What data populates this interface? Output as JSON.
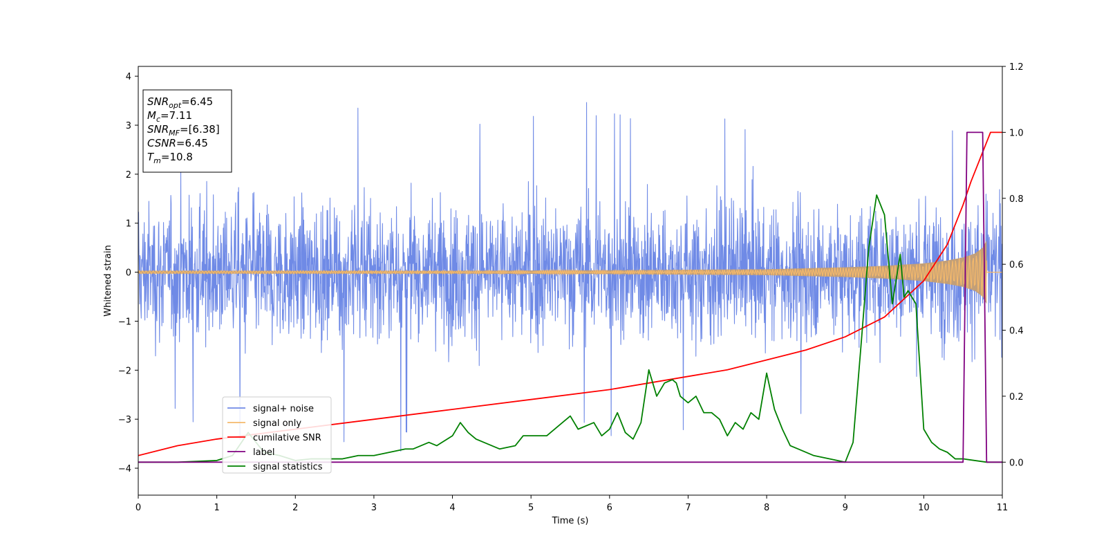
{
  "chart_data": {
    "type": "line",
    "title": "",
    "xlabel": "Time (s)",
    "ylabel": "Whitened strain",
    "xlim": [
      0,
      11
    ],
    "ylim": [
      -4.55,
      4.2
    ],
    "y2lim": [
      -0.1,
      1.2
    ],
    "xticks": [
      "0",
      "1",
      "2",
      "3",
      "4",
      "5",
      "6",
      "7",
      "8",
      "9",
      "10",
      "11"
    ],
    "yticks": [
      "4",
      "3",
      "2",
      "1",
      "0",
      "−1",
      "−2",
      "−3",
      "−4"
    ],
    "y2ticks": [
      "1.2",
      "1.0",
      "0.8",
      "0.6",
      "0.4",
      "0.2",
      "0.0"
    ],
    "annotation_lines": [
      {
        "name": "SNR",
        "sub": "opt",
        "value": "=6.45"
      },
      {
        "name": "M",
        "sub": "c",
        "value": "=7.11"
      },
      {
        "name": "SNR",
        "sub": "MF",
        "value": "=[6.38]"
      },
      {
        "name": "CSNR",
        "sub": "",
        "value": "=6.45"
      },
      {
        "name": "T",
        "sub": "m",
        "value": "=10.8"
      }
    ],
    "legend_position": "lower left",
    "series": [
      {
        "name": "signal+ noise",
        "axis": "left",
        "color": "#6f8ae6",
        "description_range": [
          -3.7,
          3.85
        ],
        "envelope": {
          "x": [
            0,
            1,
            2,
            3,
            4,
            5,
            6,
            7,
            8,
            9,
            10,
            11
          ],
          "typical_peak": [
            2.4,
            2.5,
            2.5,
            2.5,
            2.5,
            2.5,
            2.5,
            2.5,
            2.5,
            2.5,
            2.5,
            2.5
          ],
          "max_peak": [
            3.0,
            3.5,
            3.7,
            3.85,
            3.3,
            3.2,
            3.7,
            3.4,
            3.2,
            3.4,
            3.3,
            3.0
          ]
        }
      },
      {
        "name": "signal only",
        "axis": "left",
        "color": "#f5b96b",
        "fill_color": "#c29f78",
        "amplitude": {
          "x": [
            0,
            2,
            4,
            6,
            7,
            8,
            8.5,
            9,
            9.5,
            10,
            10.3,
            10.5,
            10.65,
            10.75,
            10.8
          ],
          "values": [
            0.03,
            0.03,
            0.03,
            0.04,
            0.05,
            0.06,
            0.08,
            0.1,
            0.13,
            0.18,
            0.24,
            0.3,
            0.38,
            0.5,
            0.65
          ]
        }
      },
      {
        "name": "cumilative SNR",
        "axis": "right",
        "color": "#ff0000",
        "x": [
          0,
          0.5,
          1,
          2,
          3,
          4,
          5,
          6,
          7,
          7.5,
          8,
          8.5,
          9,
          9.5,
          10,
          10.3,
          10.5,
          10.6,
          10.7,
          10.75,
          10.8,
          10.85,
          11
        ],
        "y": [
          0.02,
          0.05,
          0.07,
          0.1,
          0.13,
          0.16,
          0.19,
          0.22,
          0.26,
          0.28,
          0.31,
          0.34,
          0.38,
          0.44,
          0.55,
          0.66,
          0.78,
          0.85,
          0.91,
          0.94,
          0.97,
          1.0,
          1.0
        ]
      },
      {
        "name": "label",
        "axis": "right",
        "color": "#800080",
        "x": [
          0,
          10.5,
          10.55,
          10.75,
          10.8,
          11
        ],
        "y": [
          0,
          0,
          1,
          1,
          0,
          0
        ]
      },
      {
        "name": "signal statistics",
        "axis": "right",
        "color": "#008000",
        "x": [
          0,
          0.5,
          1,
          1.2,
          1.4,
          1.6,
          1.8,
          2,
          2.2,
          2.4,
          2.6,
          2.8,
          3,
          3.2,
          3.4,
          3.5,
          3.7,
          3.8,
          4,
          4.1,
          4.2,
          4.3,
          4.4,
          4.5,
          4.6,
          4.8,
          4.9,
          5,
          5.2,
          5.4,
          5.5,
          5.6,
          5.8,
          5.9,
          6,
          6.1,
          6.2,
          6.3,
          6.4,
          6.5,
          6.55,
          6.6,
          6.7,
          6.8,
          6.85,
          6.9,
          7,
          7.1,
          7.2,
          7.3,
          7.4,
          7.5,
          7.6,
          7.7,
          7.8,
          7.9,
          8,
          8.1,
          8.2,
          8.3,
          8.4,
          8.6,
          8.8,
          9,
          9.1,
          9.2,
          9.3,
          9.4,
          9.5,
          9.6,
          9.7,
          9.75,
          9.8,
          9.9,
          10,
          10.1,
          10.2,
          10.3,
          10.4,
          10.5,
          10.8,
          11
        ],
        "y": [
          0,
          0,
          0.005,
          0.02,
          0.09,
          0.03,
          0.02,
          0.005,
          0.01,
          0.01,
          0.01,
          0.02,
          0.02,
          0.03,
          0.04,
          0.04,
          0.06,
          0.05,
          0.08,
          0.12,
          0.09,
          0.07,
          0.06,
          0.05,
          0.04,
          0.05,
          0.08,
          0.08,
          0.08,
          0.12,
          0.14,
          0.1,
          0.12,
          0.08,
          0.1,
          0.15,
          0.09,
          0.07,
          0.12,
          0.28,
          0.24,
          0.2,
          0.24,
          0.25,
          0.24,
          0.2,
          0.18,
          0.2,
          0.15,
          0.15,
          0.13,
          0.08,
          0.12,
          0.1,
          0.15,
          0.13,
          0.27,
          0.16,
          0.1,
          0.05,
          0.04,
          0.02,
          0.01,
          0.0,
          0.06,
          0.35,
          0.65,
          0.81,
          0.75,
          0.48,
          0.63,
          0.5,
          0.52,
          0.48,
          0.1,
          0.06,
          0.04,
          0.03,
          0.01,
          0.01,
          0.0,
          0.0
        ]
      }
    ]
  }
}
